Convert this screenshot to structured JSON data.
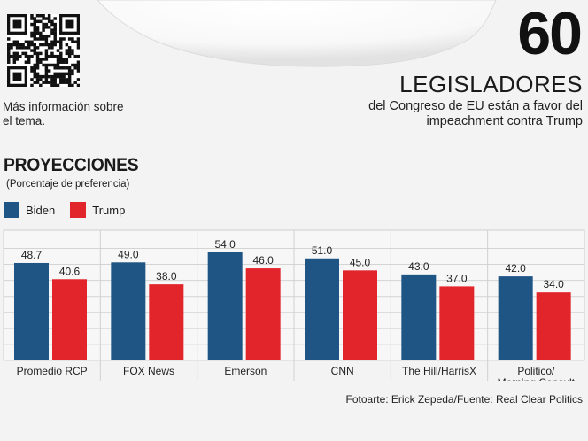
{
  "qr_caption": "Más información sobre el tema.",
  "stat": {
    "number": "60",
    "label": "LEGISLADORES",
    "description": "del Congreso de EU están a favor del impeachment contra Trump"
  },
  "colors": {
    "biden": "#1f5585",
    "trump": "#e2242b"
  },
  "icons": {
    "qr": "qr-code-icon"
  },
  "credit": "Fotoarte: Erick Zepeda/Fuente: Real Clear Politics",
  "chart_data": {
    "type": "bar",
    "title": "PROYECCIONES",
    "subtitle": "(Porcentaje de preferencia)",
    "legend_position": "top-left",
    "grid": true,
    "ylim": [
      0,
      60
    ],
    "categories": [
      "Promedio RCP",
      "FOX News",
      "Emerson",
      "CNN",
      "The Hill/HarrisX",
      "Politico/Morning Consult"
    ],
    "series": [
      {
        "name": "Biden",
        "values": [
          48.7,
          49.0,
          54.0,
          51.0,
          43.0,
          42.0
        ],
        "labels": [
          "48.7",
          "49.0",
          "54.0",
          "51.0",
          "43.0",
          "42.0"
        ]
      },
      {
        "name": "Trump",
        "values": [
          40.6,
          38.0,
          46.0,
          45.0,
          37.0,
          34.0
        ],
        "labels": [
          "40.6",
          "38.0",
          "46.0",
          "45.0",
          "37.0",
          "34.0"
        ]
      }
    ]
  }
}
